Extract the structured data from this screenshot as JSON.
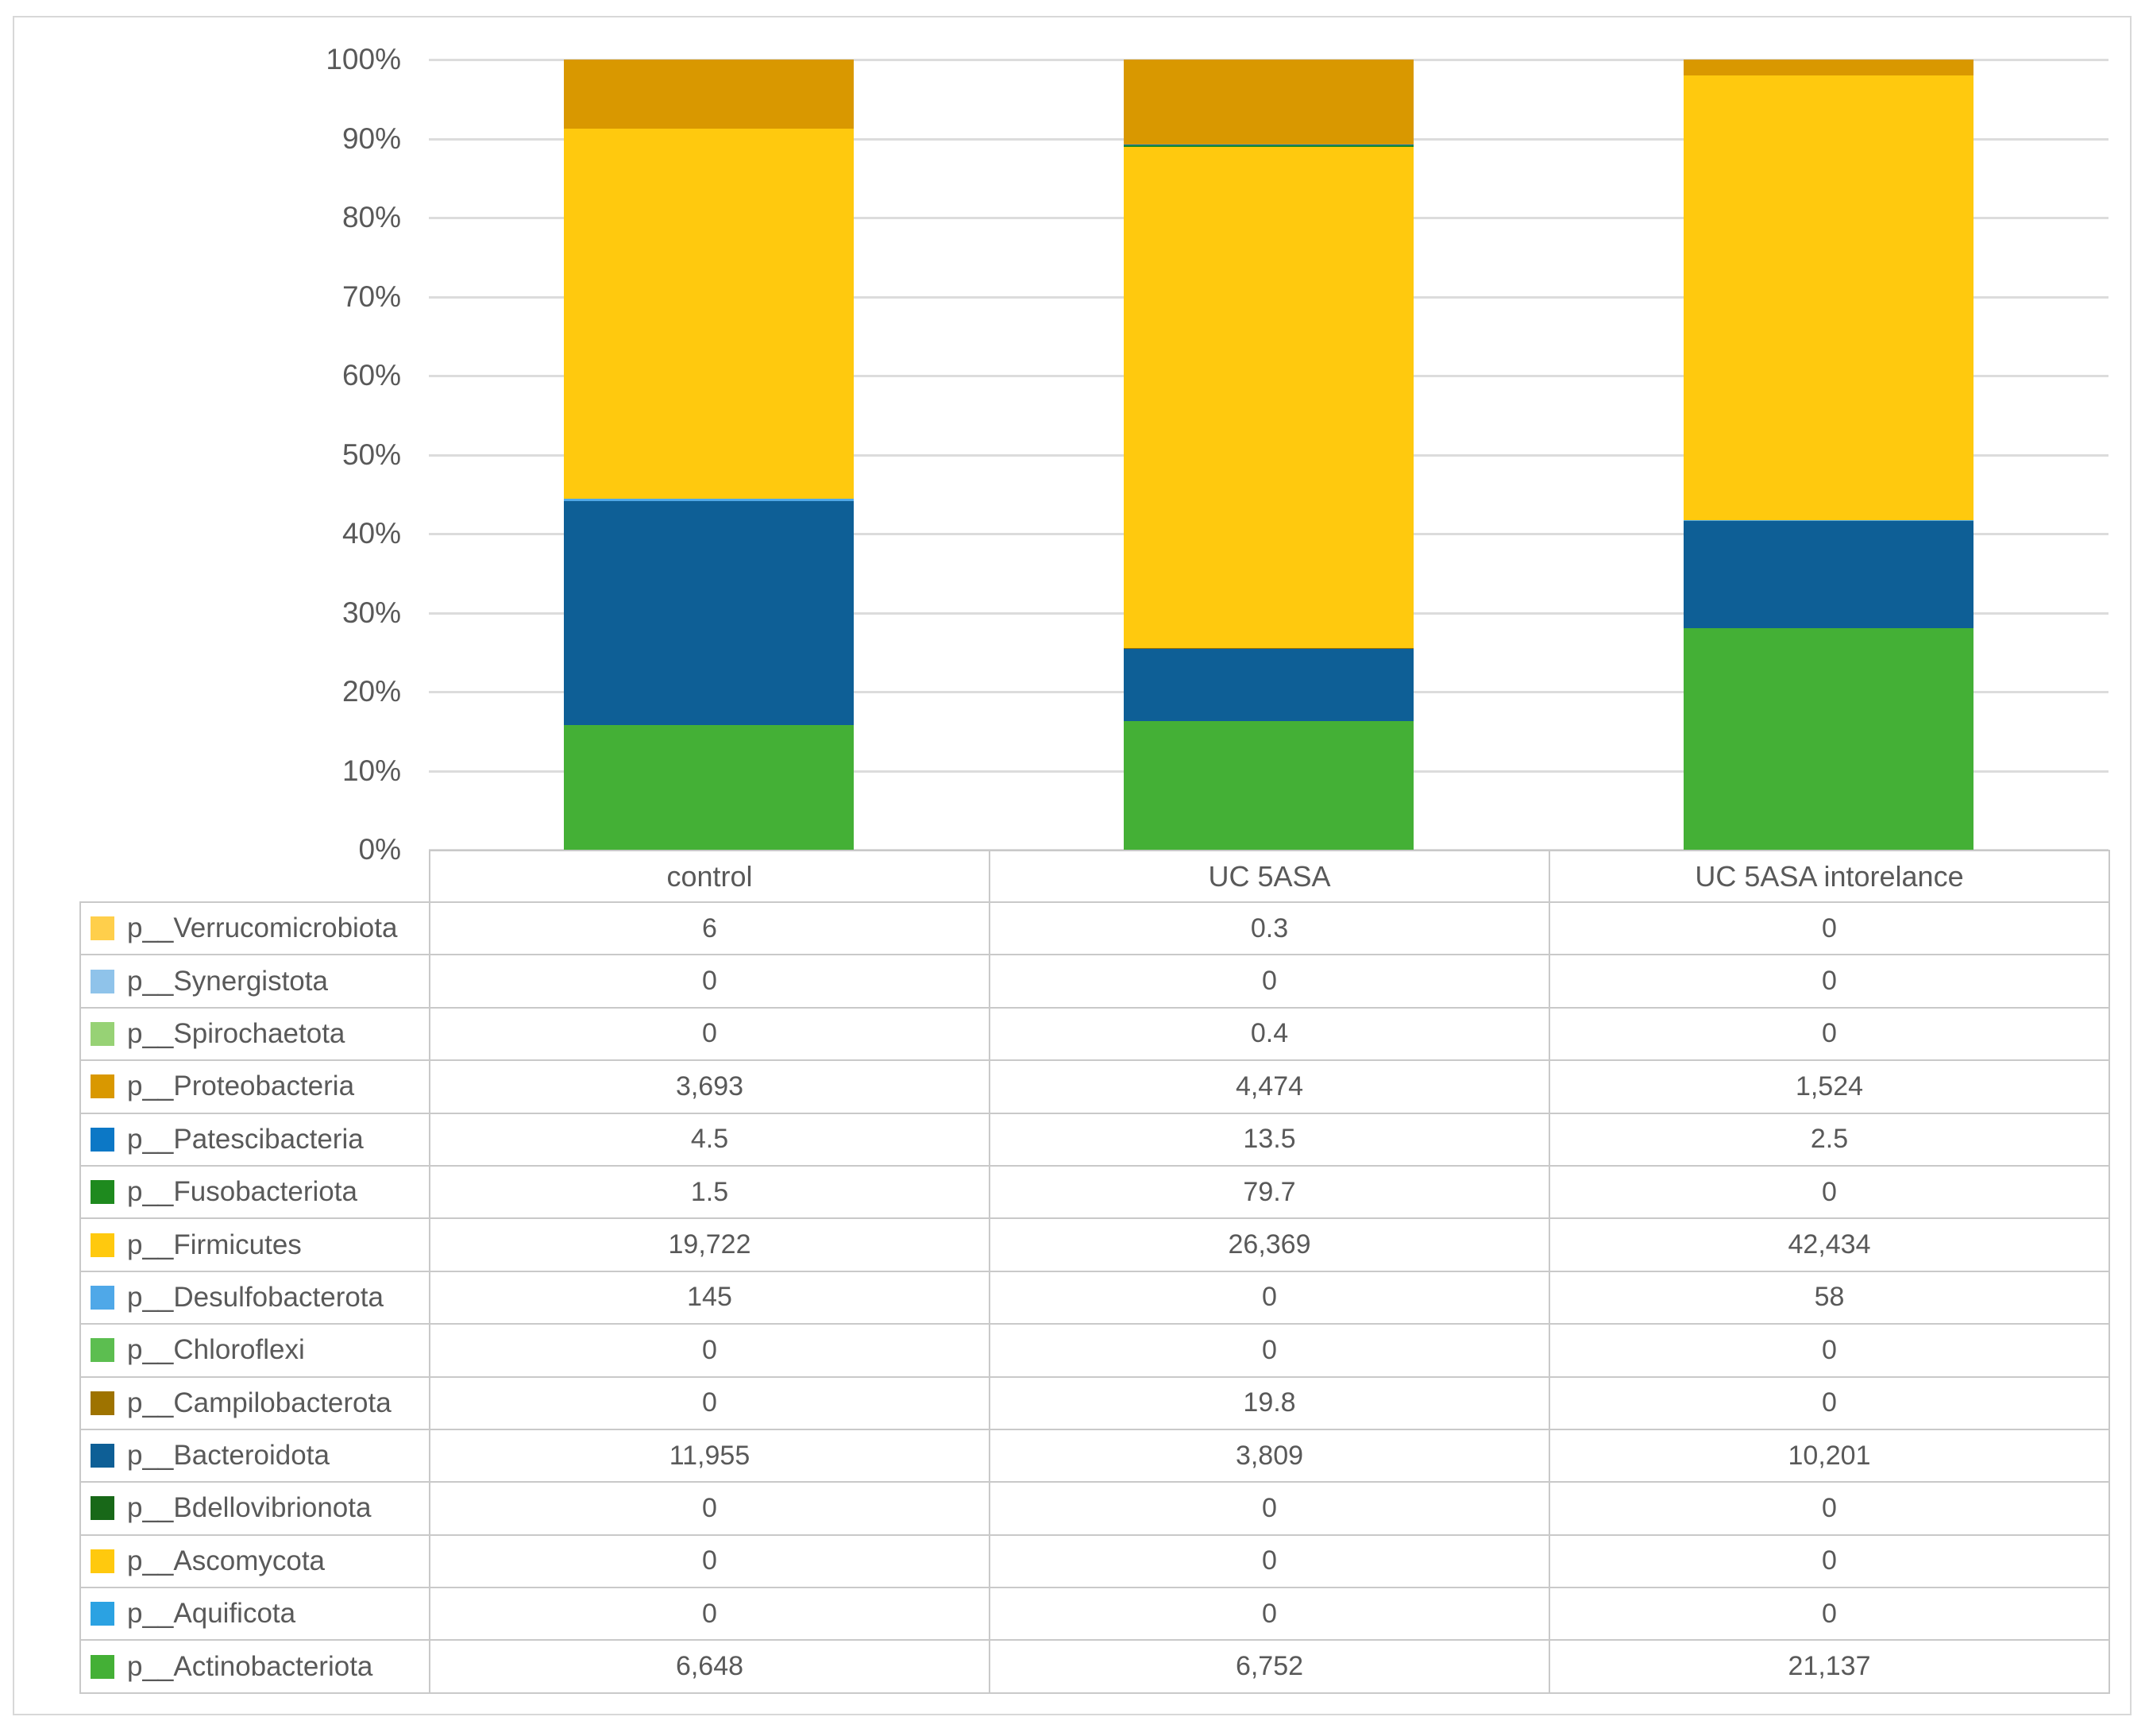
{
  "figure": {
    "text_color": "#595959",
    "outer_border_color": "#d8d8d8",
    "gridline_color": "#dcdcdc",
    "table_border_color": "#c9c9c9"
  },
  "chart_data": {
    "type": "bar",
    "subtype": "100-percent-stacked-column",
    "title": "",
    "xlabel": "",
    "ylabel": "",
    "grid": true,
    "legend_position": "left-table-keys",
    "categories": [
      "control",
      "UC 5ASA",
      "UC 5ASA intorelance"
    ],
    "y_axis": {
      "min": 0,
      "max": 100,
      "tick_labels": [
        "0%",
        "10%",
        "20%",
        "30%",
        "40%",
        "50%",
        "60%",
        "70%",
        "80%",
        "90%",
        "100%"
      ]
    },
    "stack_note": "series listed top-to-bottom as displayed in legend; bars stack bottom-to-top in reverse of this order",
    "series": [
      {
        "name": "p__Verrucomicrobiota",
        "color": "#FFCF4B",
        "values": [
          6,
          0.3,
          0
        ],
        "display": [
          "6",
          "0.3",
          "0"
        ]
      },
      {
        "name": "p__Synergistota",
        "color": "#8FC3EA",
        "values": [
          0,
          0,
          0
        ],
        "display": [
          "0",
          "0",
          "0"
        ]
      },
      {
        "name": "p__Spirochaetota",
        "color": "#97D275",
        "values": [
          0,
          0.4,
          0
        ],
        "display": [
          "0",
          "0.4",
          "0"
        ]
      },
      {
        "name": "p__Proteobacteria",
        "color": "#D99800",
        "values": [
          3693,
          4474,
          1524
        ],
        "display": [
          "3,693",
          "4,474",
          "1,524"
        ]
      },
      {
        "name": "p__Patescibacteria",
        "color": "#0C78C6",
        "values": [
          4.5,
          13.5,
          2.5
        ],
        "display": [
          "4.5",
          "13.5",
          "2.5"
        ]
      },
      {
        "name": "p__Fusobacteriota",
        "color": "#1E8A1E",
        "values": [
          1.5,
          79.7,
          0
        ],
        "display": [
          "1.5",
          "79.7",
          "0"
        ]
      },
      {
        "name": "p__Firmicutes",
        "color": "#FFC90E",
        "values": [
          19722,
          26369,
          42434
        ],
        "display": [
          "19,722",
          "26,369",
          "42,434"
        ]
      },
      {
        "name": "p__Desulfobacterota",
        "color": "#4FA8E8",
        "values": [
          145,
          0,
          58
        ],
        "display": [
          "145",
          "0",
          "58"
        ]
      },
      {
        "name": "p__Chloroflexi",
        "color": "#5CBE50",
        "values": [
          0,
          0,
          0
        ],
        "display": [
          "0",
          "0",
          "0"
        ]
      },
      {
        "name": "p__Campilobacterota",
        "color": "#9E7300",
        "values": [
          0,
          19.8,
          0
        ],
        "display": [
          "0",
          "19.8",
          "0"
        ]
      },
      {
        "name": "p__Bacteroidota",
        "color": "#0E5F96",
        "values": [
          11955,
          3809,
          10201
        ],
        "display": [
          "11,955",
          "3,809",
          "10,201"
        ]
      },
      {
        "name": "p__Bdellovibrionota",
        "color": "#186818",
        "values": [
          0,
          0,
          0
        ],
        "display": [
          "0",
          "0",
          "0"
        ]
      },
      {
        "name": "p__Ascomycota",
        "color": "#FFC90E",
        "values": [
          0,
          0,
          0
        ],
        "display": [
          "0",
          "0",
          "0"
        ]
      },
      {
        "name": "p__Aquificota",
        "color": "#2BA2E2",
        "values": [
          0,
          0,
          0
        ],
        "display": [
          "0",
          "0",
          "0"
        ]
      },
      {
        "name": "p__Actinobacteriota",
        "color": "#44B036",
        "values": [
          6648,
          6752,
          21137
        ],
        "display": [
          "6,648",
          "6,752",
          "21,137"
        ]
      }
    ]
  }
}
